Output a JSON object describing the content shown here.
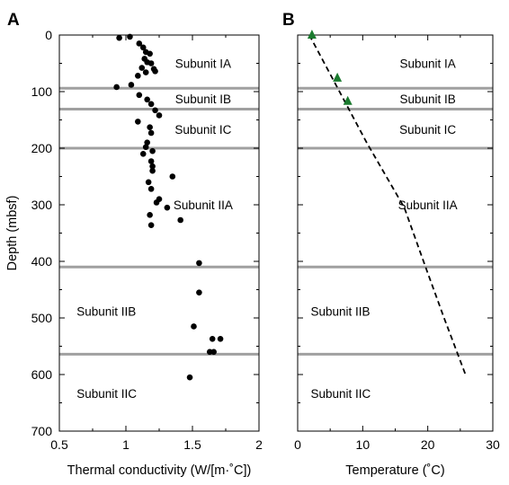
{
  "chart_data": [
    {
      "panel": "A",
      "type": "scatter",
      "xlabel": "Thermal conductivity (W/[m·˚C])",
      "ylabel": "Depth (mbsf)",
      "xlim": [
        0.5,
        2
      ],
      "ylim": [
        0,
        700
      ],
      "y_inverted": true,
      "xticks": [
        "0.5",
        "1",
        "1.5",
        "2"
      ],
      "yticks": [
        "0",
        "100",
        "200",
        "300",
        "400",
        "500",
        "600",
        "700"
      ],
      "points": [
        {
          "x": 0.95,
          "y": 5
        },
        {
          "x": 1.03,
          "y": 3
        },
        {
          "x": 1.1,
          "y": 15
        },
        {
          "x": 1.13,
          "y": 22
        },
        {
          "x": 1.15,
          "y": 30
        },
        {
          "x": 1.18,
          "y": 33
        },
        {
          "x": 1.14,
          "y": 42
        },
        {
          "x": 1.16,
          "y": 48
        },
        {
          "x": 1.19,
          "y": 50
        },
        {
          "x": 1.12,
          "y": 58
        },
        {
          "x": 1.21,
          "y": 60
        },
        {
          "x": 1.22,
          "y": 64
        },
        {
          "x": 1.15,
          "y": 66
        },
        {
          "x": 1.09,
          "y": 72
        },
        {
          "x": 1.04,
          "y": 88
        },
        {
          "x": 0.93,
          "y": 92
        },
        {
          "x": 1.1,
          "y": 106
        },
        {
          "x": 1.16,
          "y": 114
        },
        {
          "x": 1.19,
          "y": 122
        },
        {
          "x": 1.22,
          "y": 133
        },
        {
          "x": 1.25,
          "y": 142
        },
        {
          "x": 1.09,
          "y": 153
        },
        {
          "x": 1.18,
          "y": 163
        },
        {
          "x": 1.19,
          "y": 173
        },
        {
          "x": 1.16,
          "y": 190
        },
        {
          "x": 1.15,
          "y": 198
        },
        {
          "x": 1.2,
          "y": 205
        },
        {
          "x": 1.13,
          "y": 210
        },
        {
          "x": 1.19,
          "y": 223
        },
        {
          "x": 1.2,
          "y": 232
        },
        {
          "x": 1.2,
          "y": 240
        },
        {
          "x": 1.35,
          "y": 250
        },
        {
          "x": 1.17,
          "y": 260
        },
        {
          "x": 1.19,
          "y": 272
        },
        {
          "x": 1.25,
          "y": 290
        },
        {
          "x": 1.23,
          "y": 296
        },
        {
          "x": 1.31,
          "y": 305
        },
        {
          "x": 1.18,
          "y": 318
        },
        {
          "x": 1.41,
          "y": 327
        },
        {
          "x": 1.19,
          "y": 336
        },
        {
          "x": 1.55,
          "y": 403
        },
        {
          "x": 1.55,
          "y": 455
        },
        {
          "x": 1.51,
          "y": 515
        },
        {
          "x": 1.65,
          "y": 537
        },
        {
          "x": 1.71,
          "y": 537
        },
        {
          "x": 1.63,
          "y": 560
        },
        {
          "x": 1.66,
          "y": 560
        },
        {
          "x": 1.48,
          "y": 605
        }
      ],
      "boundaries": [
        94,
        131,
        200,
        410,
        564
      ],
      "subunits": [
        {
          "label": "Subunit IA",
          "depth": 50,
          "x": 1.58,
          "anchor": "middle"
        },
        {
          "label": "Subunit IB",
          "depth": 113,
          "x": 1.58,
          "anchor": "middle"
        },
        {
          "label": "Subunit IC",
          "depth": 167,
          "x": 1.58,
          "anchor": "middle"
        },
        {
          "label": "Subunit IIA",
          "depth": 300,
          "x": 1.58,
          "anchor": "middle"
        },
        {
          "label": "Subunit IIB",
          "depth": 488,
          "x": 0.63,
          "anchor": "start"
        },
        {
          "label": "Subunit IIC",
          "depth": 633,
          "x": 0.63,
          "anchor": "start"
        }
      ]
    },
    {
      "panel": "B",
      "type": "line",
      "xlabel": "Temperature (˚C)",
      "xlim": [
        0,
        30
      ],
      "ylim": [
        0,
        700
      ],
      "y_inverted": true,
      "xticks": [
        "0",
        "10",
        "20",
        "30"
      ],
      "points": [
        {
          "x": 2.2,
          "y": 0
        },
        {
          "x": 6.1,
          "y": 76
        },
        {
          "x": 7.7,
          "y": 117
        }
      ],
      "line": [
        {
          "x": 1.8,
          "y": 0
        },
        {
          "x": 10.6,
          "y": 190
        },
        {
          "x": 16.4,
          "y": 305
        },
        {
          "x": 19.5,
          "y": 405
        },
        {
          "x": 22.5,
          "y": 500
        },
        {
          "x": 25.8,
          "y": 600
        }
      ],
      "boundaries": [
        94,
        131,
        200,
        410,
        564
      ],
      "subunits": [
        {
          "label": "Subunit IA",
          "depth": 50,
          "x": 20,
          "anchor": "middle"
        },
        {
          "label": "Subunit IB",
          "depth": 113,
          "x": 20,
          "anchor": "middle"
        },
        {
          "label": "Subunit IC",
          "depth": 167,
          "x": 20,
          "anchor": "middle"
        },
        {
          "label": "Subunit IIA",
          "depth": 300,
          "x": 20,
          "anchor": "middle"
        },
        {
          "label": "Subunit IIB",
          "depth": 488,
          "x": 2,
          "anchor": "start"
        },
        {
          "label": "Subunit IIC",
          "depth": 633,
          "x": 2,
          "anchor": "start"
        }
      ]
    }
  ],
  "colors": {
    "points": "#000000",
    "temperature_markers": "#1a7a2e",
    "boundaries": "#a0a0a0",
    "axes": "#000000"
  }
}
